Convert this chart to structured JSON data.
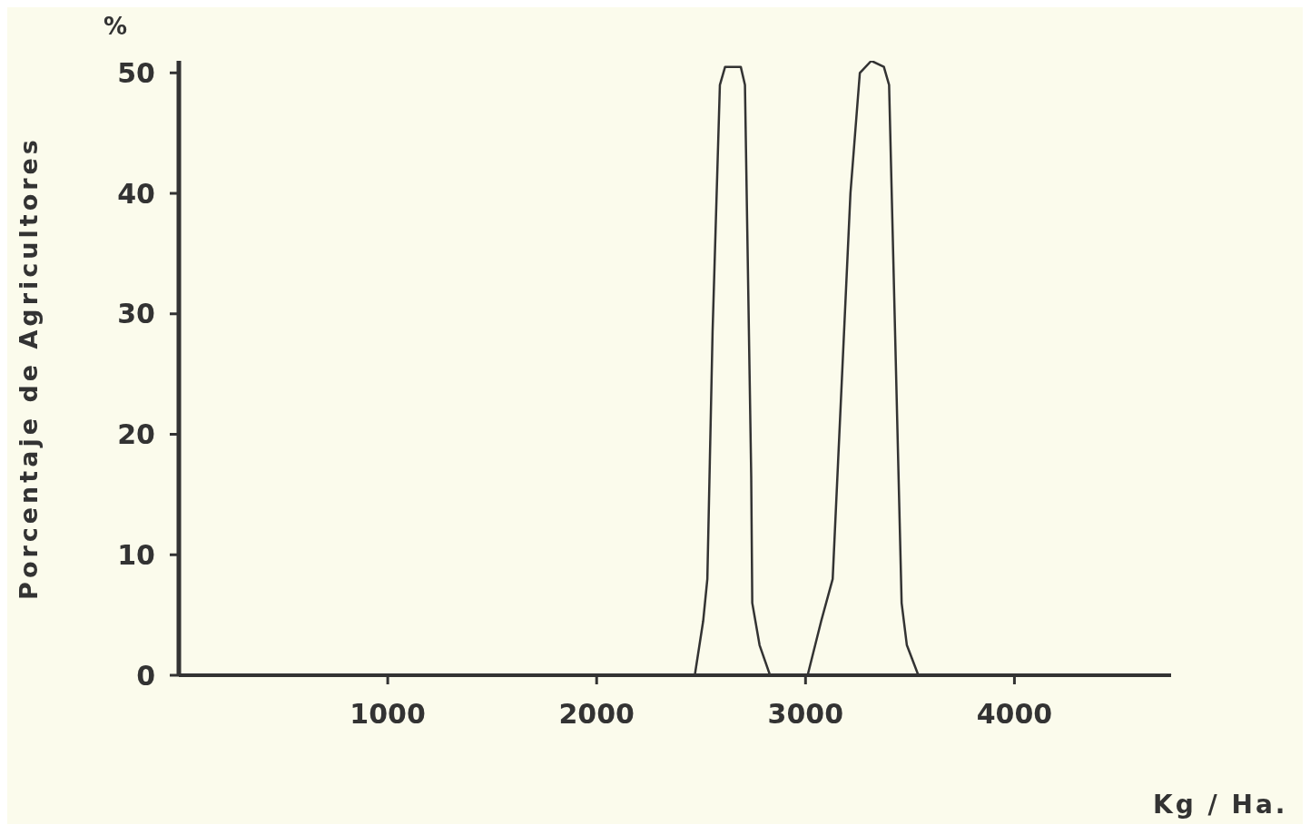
{
  "chart_data": {
    "type": "line",
    "xlabel": "Kg / Ha.",
    "ylabel": "Porcentaje de Agricultores",
    "annotations": [
      "%"
    ],
    "xlim": [
      0,
      4750
    ],
    "ylim": [
      0,
      51
    ],
    "xticks": [
      1000,
      2000,
      3000,
      4000
    ],
    "yticks": [
      0,
      10,
      20,
      30,
      40,
      50
    ],
    "grid": false,
    "marker": "none",
    "line_style": "solid",
    "series": [
      {
        "color": "#333333",
        "x": [
          2470,
          2510,
          2530,
          2555,
          2590,
          2615,
          2690,
          2710,
          2740,
          2745,
          2780,
          2830,
          2920,
          3010,
          3075,
          3130,
          3215,
          3260,
          3315,
          3375,
          3400,
          3460,
          3485,
          3540
        ],
        "values": [
          0,
          4.5,
          8,
          28.5,
          49,
          50.5,
          50.5,
          49,
          16.5,
          6,
          2.5,
          0,
          null,
          0,
          4.5,
          8,
          40,
          50,
          51,
          50.5,
          49,
          6,
          2.5,
          0
        ]
      }
    ]
  }
}
